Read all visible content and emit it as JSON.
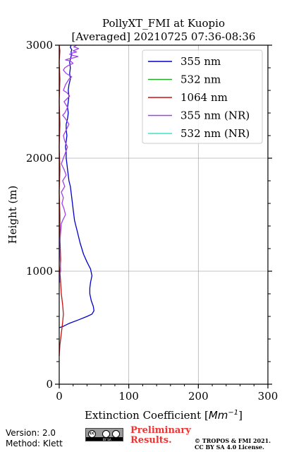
{
  "chart_data": {
    "type": "line",
    "title": "PollyXT_FMI at Kuopio",
    "subtitle": "[Averaged] 20210725 07:36-08:36",
    "xlabel": "Extinction Coefficient [",
    "xlabel_unit": "Mm",
    "xlabel_exp": "−1",
    "xlabel_end": "]",
    "ylabel": "Height (m)",
    "xlim": [
      0,
      300
    ],
    "ylim": [
      0,
      3000
    ],
    "xticks": [
      0,
      100,
      200,
      300
    ],
    "yticks": [
      0,
      1000,
      2000,
      3000
    ],
    "xtick_labels": [
      "0",
      "100",
      "200",
      "300"
    ],
    "ytick_labels": [
      "0",
      "1000",
      "2000",
      "3000"
    ],
    "grid": true,
    "legend_position": "top-right",
    "series": [
      {
        "name": "355 nm",
        "color": "#0000cc",
        "x": [
          0,
          5,
          15,
          28,
          40,
          47,
          50,
          49,
          46,
          44,
          44,
          45,
          47,
          45,
          40,
          35,
          30,
          26,
          22,
          20,
          18,
          16,
          14,
          13,
          12,
          11,
          10,
          10,
          9,
          10,
          11,
          10,
          10,
          12,
          13,
          12,
          13,
          14,
          13,
          14,
          16,
          15,
          16,
          15,
          17,
          18,
          17,
          18,
          16,
          17
        ],
        "y": [
          500,
          510,
          540,
          570,
          600,
          620,
          650,
          690,
          740,
          800,
          850,
          900,
          960,
          1020,
          1080,
          1150,
          1250,
          1350,
          1450,
          1550,
          1650,
          1750,
          1800,
          1850,
          1900,
          1950,
          2000,
          2050,
          2100,
          2150,
          2200,
          2250,
          2300,
          2350,
          2400,
          2450,
          2500,
          2550,
          2600,
          2650,
          2700,
          2750,
          2800,
          2850,
          2900,
          2920,
          2940,
          2960,
          2980,
          3000
        ]
      },
      {
        "name": "532 nm",
        "color": "#22aa22",
        "x": [],
        "y": []
      },
      {
        "name": "1064 nm",
        "color": "#cc1111",
        "x": [
          0,
          1,
          3,
          5,
          6,
          5,
          3,
          2,
          1,
          2,
          1,
          1,
          0,
          1,
          0,
          1,
          0,
          1,
          0,
          1,
          0
        ],
        "y": [
          250,
          350,
          450,
          550,
          620,
          700,
          800,
          900,
          1000,
          1100,
          1300,
          1500,
          1700,
          1900,
          2100,
          2300,
          2500,
          2700,
          2850,
          2950,
          3000
        ]
      },
      {
        "name": "355 nm (NR)",
        "color": "#a040f0",
        "x": [
          1,
          0,
          2,
          1,
          0,
          3,
          5,
          9,
          7,
          4,
          6,
          3,
          8,
          5,
          10,
          7,
          3,
          6,
          9,
          12,
          8,
          6,
          10,
          14,
          9,
          5,
          8,
          12,
          7,
          15,
          11,
          6,
          9,
          14,
          18,
          10,
          6,
          8,
          13,
          20,
          16,
          9,
          14,
          22,
          27,
          19,
          15,
          18,
          25,
          20,
          24,
          28,
          21,
          25
        ],
        "y": [
          900,
          950,
          1000,
          1150,
          1200,
          1420,
          1450,
          1500,
          1550,
          1600,
          1650,
          1700,
          1750,
          1800,
          1850,
          1900,
          1950,
          2000,
          2050,
          2100,
          2150,
          2200,
          2250,
          2300,
          2350,
          2380,
          2400,
          2450,
          2500,
          2550,
          2580,
          2600,
          2650,
          2700,
          2720,
          2750,
          2780,
          2800,
          2820,
          2840,
          2860,
          2870,
          2880,
          2890,
          2900,
          2910,
          2920,
          2930,
          2940,
          2950,
          2960,
          2970,
          2985,
          3000
        ]
      },
      {
        "name": "532 nm (NR)",
        "color": "#40e0c8",
        "x": [],
        "y": []
      }
    ]
  },
  "footer": {
    "version": "Version: 2.0",
    "method": "Method: Klett",
    "license_badge": "cc",
    "license_bar": "BY  SA",
    "preliminary_line1": "Preliminary",
    "preliminary_line2": "Results.",
    "copyright_line1": "© TROPOS & FMI 2021.",
    "copyright_line2": "CC BY SA 4.0 License."
  }
}
